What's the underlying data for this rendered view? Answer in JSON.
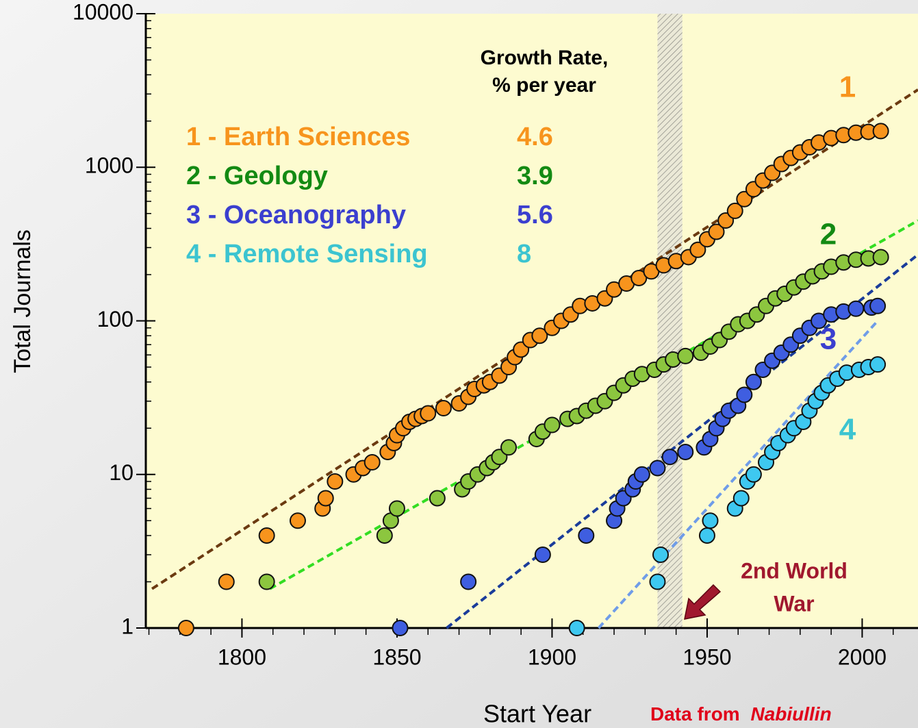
{
  "chart_data": {
    "type": "scatter",
    "x_label": "Start Year",
    "y_label": "Total Journals",
    "xlim": [
      1769,
      2018
    ],
    "ylim": [
      1,
      10000
    ],
    "y_log": true,
    "xticks": [
      1800,
      1850,
      1900,
      1950,
      2000
    ],
    "yticks": [
      1,
      10,
      100,
      1000,
      10000
    ],
    "legend_header": [
      "Growth Rate,",
      "% per year"
    ],
    "series": [
      {
        "name": "1 - Earth Sciences",
        "rate": 4.6,
        "label": "1",
        "color": "#f7941d",
        "text_color": "#f7941d",
        "x": [
          1782,
          1795,
          1808,
          1818,
          1826,
          1827,
          1830,
          1836,
          1839,
          1842,
          1847,
          1849,
          1850,
          1852,
          1854,
          1856,
          1858,
          1860,
          1865,
          1870,
          1873,
          1875,
          1878,
          1880,
          1883,
          1886,
          1888,
          1890,
          1893,
          1896,
          1900,
          1903,
          1906,
          1909,
          1913,
          1917,
          1920,
          1924,
          1928,
          1932,
          1936,
          1940,
          1944,
          1947,
          1950,
          1953,
          1956,
          1959,
          1962,
          1965,
          1968,
          1971,
          1974,
          1977,
          1980,
          1983,
          1986,
          1990,
          1994,
          1998,
          2002,
          2006
        ],
        "values": [
          1,
          2,
          4,
          5,
          6,
          7,
          9,
          10,
          11,
          12,
          14,
          16,
          18,
          20,
          22,
          23,
          24,
          25,
          27,
          29,
          32,
          36,
          38,
          40,
          44,
          50,
          58,
          65,
          75,
          80,
          90,
          100,
          110,
          125,
          130,
          140,
          160,
          175,
          190,
          210,
          230,
          245,
          260,
          290,
          340,
          380,
          450,
          520,
          620,
          720,
          820,
          920,
          1050,
          1150,
          1250,
          1350,
          1450,
          1550,
          1620,
          1680,
          1700,
          1720
        ]
      },
      {
        "name": "2 - Geology",
        "rate": 3.9,
        "label": "2",
        "color": "#8cc63f",
        "text_color": "#138a13",
        "x": [
          1808,
          1846,
          1848,
          1850,
          1863,
          1871,
          1873,
          1876,
          1879,
          1881,
          1883,
          1886,
          1895,
          1897,
          1900,
          1905,
          1908,
          1911,
          1914,
          1917,
          1920,
          1923,
          1926,
          1929,
          1933,
          1936,
          1939,
          1943,
          1948,
          1951,
          1954,
          1957,
          1960,
          1963,
          1966,
          1969,
          1972,
          1975,
          1978,
          1981,
          1984,
          1987,
          1990,
          1994,
          1998,
          2002,
          2006
        ],
        "values": [
          2,
          4,
          5,
          6,
          7,
          8,
          9,
          10,
          11,
          12,
          13,
          15,
          17,
          19,
          21,
          23,
          24,
          26,
          28,
          30,
          34,
          38,
          42,
          45,
          48,
          52,
          56,
          59,
          62,
          68,
          75,
          85,
          95,
          100,
          110,
          125,
          140,
          150,
          165,
          180,
          195,
          210,
          225,
          240,
          250,
          255,
          260
        ]
      },
      {
        "name": "3 - Oceanography",
        "rate": 5.6,
        "label": "3",
        "color": "#3f5ee0",
        "text_color": "#3b3fcf",
        "x": [
          1851,
          1873,
          1897,
          1911,
          1920,
          1921,
          1923,
          1926,
          1927,
          1929,
          1934,
          1938,
          1943,
          1949,
          1951,
          1953,
          1955,
          1957,
          1960,
          1962,
          1965,
          1968,
          1971,
          1974,
          1977,
          1980,
          1983,
          1986,
          1990,
          1994,
          1998,
          2003,
          2005
        ],
        "values": [
          1,
          2,
          3,
          4,
          5,
          6,
          7,
          8,
          9,
          10,
          11,
          13,
          14,
          15,
          17,
          20,
          23,
          26,
          28,
          33,
          40,
          48,
          55,
          62,
          70,
          80,
          90,
          100,
          110,
          115,
          120,
          122,
          125
        ]
      },
      {
        "name": "4 - Remote Sensing",
        "rate": 8.0,
        "label": "4",
        "color": "#3ec8f0",
        "text_color": "#3cc4d0",
        "x": [
          1908,
          1934,
          1935,
          1950,
          1951,
          1959,
          1961,
          1963,
          1965,
          1969,
          1971,
          1973,
          1976,
          1978,
          1981,
          1983,
          1985,
          1987,
          1989,
          1992,
          1995,
          1999,
          2002,
          2005
        ],
        "values": [
          1,
          2,
          3,
          4,
          5,
          6,
          7,
          9,
          10,
          12,
          14,
          16,
          18,
          20,
          22,
          26,
          30,
          34,
          38,
          42,
          46,
          48,
          50,
          52
        ]
      }
    ],
    "trendlines": [
      {
        "color": "#6b3a10",
        "x": [
          1771,
          2018
        ],
        "values": [
          1.8,
          3200
        ]
      },
      {
        "color": "#33dd22",
        "x": [
          1809,
          2018
        ],
        "values": [
          1.8,
          450
        ]
      },
      {
        "color": "#1a3c9a",
        "x": [
          1866,
          2018
        ],
        "values": [
          1,
          270
        ]
      },
      {
        "color": "#6f9ce8",
        "x": [
          1915,
          2005
        ],
        "values": [
          1,
          100
        ]
      }
    ],
    "band": [
      1934,
      1942
    ],
    "annotation": {
      "lines": [
        "2nd World",
        "War"
      ],
      "color": "#a0182e"
    },
    "source": [
      "Data from ",
      "Nabiullin"
    ]
  }
}
